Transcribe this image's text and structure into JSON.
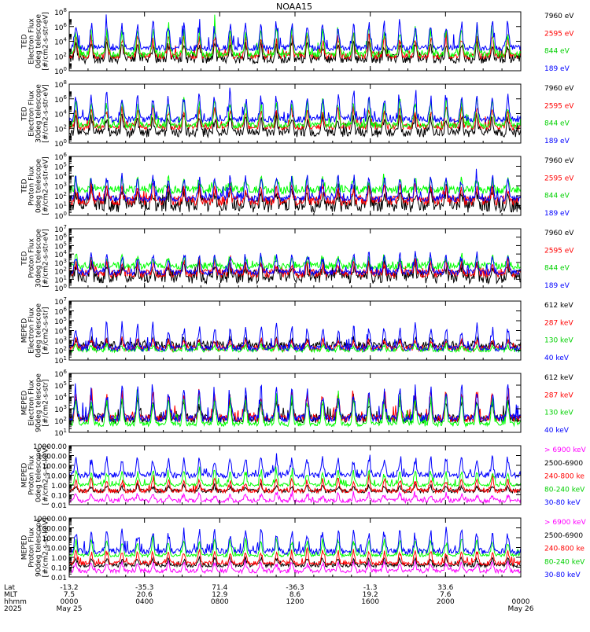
{
  "title": "NOAA15",
  "colors": {
    "black": "#000000",
    "red": "#ff0000",
    "green": "#00ff00",
    "blue": "#0000ff",
    "magenta": "#ff00ff"
  },
  "chart_data": [
    {
      "type": "line",
      "ylabel": [
        "TED",
        "Electron Flux",
        "0deg telescope",
        "[#/cm2-s-str-eV]"
      ],
      "y_scale": "log",
      "ylim_exp": [
        0,
        8
      ],
      "y_ticks": [
        {
          "exp": 0,
          "label": "10",
          "sup": "0"
        },
        {
          "exp": 2,
          "label": "10",
          "sup": "2"
        },
        {
          "exp": 4,
          "label": "10",
          "sup": "4"
        },
        {
          "exp": 6,
          "label": "10",
          "sup": "6"
        },
        {
          "exp": 8,
          "label": "10",
          "sup": "8"
        }
      ],
      "series": [
        {
          "name": "7960 eV",
          "color": "#000000",
          "base": 1.6,
          "amp": 2.4,
          "noise": 0.6
        },
        {
          "name": "2595 eV",
          "color": "#ff0000",
          "base": 2.0,
          "amp": 3.0,
          "noise": 0.4
        },
        {
          "name": "844 eV",
          "color": "#00ff00",
          "base": 2.2,
          "amp": 4.0,
          "noise": 0.4
        },
        {
          "name": "189 eV",
          "color": "#0000ff",
          "base": 3.1,
          "amp": 3.8,
          "noise": 0.4
        }
      ]
    },
    {
      "type": "line",
      "ylabel": [
        "TED",
        "Electron Flux",
        "30deg telescope",
        "[#/cm2-s-str-eV]"
      ],
      "y_scale": "log",
      "ylim_exp": [
        0,
        8
      ],
      "y_ticks": [
        {
          "exp": 0,
          "label": "10",
          "sup": "0"
        },
        {
          "exp": 2,
          "label": "10",
          "sup": "2"
        },
        {
          "exp": 4,
          "label": "10",
          "sup": "4"
        },
        {
          "exp": 6,
          "label": "10",
          "sup": "6"
        },
        {
          "exp": 8,
          "label": "10",
          "sup": "8"
        }
      ],
      "series": [
        {
          "name": "7960 eV",
          "color": "#000000",
          "base": 1.4,
          "amp": 2.4,
          "noise": 0.6
        },
        {
          "name": "2595 eV",
          "color": "#ff0000",
          "base": 2.2,
          "amp": 2.8,
          "noise": 0.4
        },
        {
          "name": "844 eV",
          "color": "#00ff00",
          "base": 2.4,
          "amp": 3.8,
          "noise": 0.4
        },
        {
          "name": "189 eV",
          "color": "#0000ff",
          "base": 3.2,
          "amp": 3.6,
          "noise": 0.4
        }
      ]
    },
    {
      "type": "line",
      "ylabel": [
        "TED",
        "Proton Flux",
        "0deg telescope",
        "[#/cm2-s-str-eV]"
      ],
      "y_scale": "log",
      "ylim_exp": [
        0,
        6
      ],
      "y_ticks": [
        {
          "exp": 0,
          "label": "10",
          "sup": "0"
        },
        {
          "exp": 1,
          "label": "10",
          "sup": "1"
        },
        {
          "exp": 2,
          "label": "10",
          "sup": "2"
        },
        {
          "exp": 3,
          "label": "10",
          "sup": "3"
        },
        {
          "exp": 4,
          "label": "10",
          "sup": "4"
        },
        {
          "exp": 5,
          "label": "10",
          "sup": "5"
        },
        {
          "exp": 6,
          "label": "10",
          "sup": "6"
        }
      ],
      "series": [
        {
          "name": "7960 eV",
          "color": "#000000",
          "base": 1.1,
          "amp": 1.8,
          "noise": 0.8
        },
        {
          "name": "2595 eV",
          "color": "#ff0000",
          "base": 1.5,
          "amp": 1.6,
          "noise": 0.5
        },
        {
          "name": "844 eV",
          "color": "#00ff00",
          "base": 2.6,
          "amp": 1.2,
          "noise": 0.4
        },
        {
          "name": "189 eV",
          "color": "#0000ff",
          "base": 1.7,
          "amp": 2.6,
          "noise": 0.3
        }
      ]
    },
    {
      "type": "line",
      "ylabel": [
        "TED",
        "Proton Flux",
        "30deg telescope",
        "[#/cm2-s-str-eV]"
      ],
      "y_scale": "log",
      "ylim_exp": [
        0,
        7
      ],
      "y_ticks": [
        {
          "exp": 0,
          "label": "10",
          "sup": "0"
        },
        {
          "exp": 1,
          "label": "10",
          "sup": "1"
        },
        {
          "exp": 2,
          "label": "10",
          "sup": "2"
        },
        {
          "exp": 3,
          "label": "10",
          "sup": "3"
        },
        {
          "exp": 4,
          "label": "10",
          "sup": "4"
        },
        {
          "exp": 5,
          "label": "10",
          "sup": "5"
        },
        {
          "exp": 6,
          "label": "10",
          "sup": "6"
        },
        {
          "exp": 7,
          "label": "10",
          "sup": "7"
        }
      ],
      "series": [
        {
          "name": "7960 eV",
          "color": "#000000",
          "base": 1.3,
          "amp": 1.6,
          "noise": 0.8
        },
        {
          "name": "2595 eV",
          "color": "#ff0000",
          "base": 1.7,
          "amp": 1.6,
          "noise": 0.5
        },
        {
          "name": "844 eV",
          "color": "#00ff00",
          "base": 2.6,
          "amp": 1.2,
          "noise": 0.4
        },
        {
          "name": "189 eV",
          "color": "#0000ff",
          "base": 1.8,
          "amp": 2.4,
          "noise": 0.3
        }
      ]
    },
    {
      "type": "line",
      "ylabel": [
        "MEPED",
        "Electron Flux",
        "0deg telescope",
        "[#/cm2-s-str]"
      ],
      "y_scale": "log",
      "ylim_exp": [
        1,
        7
      ],
      "y_ticks": [
        {
          "exp": 1,
          "label": "10",
          "sup": "1"
        },
        {
          "exp": 2,
          "label": "10",
          "sup": "2"
        },
        {
          "exp": 3,
          "label": "10",
          "sup": "3"
        },
        {
          "exp": 4,
          "label": "10",
          "sup": "4"
        },
        {
          "exp": 5,
          "label": "10",
          "sup": "5"
        },
        {
          "exp": 6,
          "label": "10",
          "sup": "6"
        },
        {
          "exp": 7,
          "label": "10",
          "sup": "7"
        }
      ],
      "series": [
        {
          "name": "612 keV",
          "color": "#000000",
          "base": 2.5,
          "amp": 0.6,
          "noise": 0.4
        },
        {
          "name": "287 keV",
          "color": "#ff0000",
          "base": 2.2,
          "amp": 1.0,
          "noise": 0.3
        },
        {
          "name": "130 keV",
          "color": "#00ff00",
          "base": 2.0,
          "amp": 0.6,
          "noise": 0.2
        },
        {
          "name": "40 keV",
          "color": "#0000ff",
          "base": 2.2,
          "amp": 2.5,
          "noise": 0.3
        }
      ]
    },
    {
      "type": "line",
      "ylabel": [
        "MEPED",
        "Electron Flux",
        "90deg telescope",
        "[#/cm2-s-str]"
      ],
      "y_scale": "log",
      "ylim_exp": [
        1,
        6
      ],
      "y_ticks": [
        {
          "exp": 1,
          "label": "10",
          "sup": "1"
        },
        {
          "exp": 2,
          "label": "10",
          "sup": "2"
        },
        {
          "exp": 3,
          "label": "10",
          "sup": "3"
        },
        {
          "exp": 4,
          "label": "10",
          "sup": "4"
        },
        {
          "exp": 5,
          "label": "10",
          "sup": "5"
        },
        {
          "exp": 6,
          "label": "10",
          "sup": "6"
        }
      ],
      "series": [
        {
          "name": "612 keV",
          "color": "#000000",
          "base": 2.2,
          "amp": 1.8,
          "noise": 0.4
        },
        {
          "name": "287 keV",
          "color": "#ff0000",
          "base": 2.2,
          "amp": 2.4,
          "noise": 0.3
        },
        {
          "name": "130 keV",
          "color": "#00ff00",
          "base": 1.7,
          "amp": 2.6,
          "noise": 0.2
        },
        {
          "name": "40 keV",
          "color": "#0000ff",
          "base": 2.2,
          "amp": 2.8,
          "noise": 0.3
        }
      ]
    },
    {
      "type": "line",
      "ylabel": [
        "MEPED",
        "Proton Flux",
        "0deg telescope",
        "[#/cm2-s-sr-keV]"
      ],
      "y_scale": "log",
      "ylim_exp": [
        -2,
        4
      ],
      "y_ticks": [
        {
          "exp": -2,
          "label": "0.01"
        },
        {
          "exp": -1,
          "label": "0.10"
        },
        {
          "exp": 0,
          "label": "1.00"
        },
        {
          "exp": 1,
          "label": "10.00"
        },
        {
          "exp": 2,
          "label": "100.00"
        },
        {
          "exp": 3,
          "label": "1000.00"
        },
        {
          "exp": 4,
          "label": "10000.00"
        }
      ],
      "series": [
        {
          "name": "> 6900 keV",
          "color": "#ff00ff",
          "base": -1.6,
          "amp": 0.8,
          "noise": 0.2
        },
        {
          "name": "2500-6900",
          "color": "#000000",
          "base": -0.6,
          "amp": 0.6,
          "noise": 0.2
        },
        {
          "name": "240-800 ke",
          "color": "#ff0000",
          "base": -0.6,
          "amp": 1.4,
          "noise": 0.2
        },
        {
          "name": "80-240 keV",
          "color": "#00ff00",
          "base": 0.0,
          "amp": 1.6,
          "noise": 0.15
        },
        {
          "name": "30-80 keV",
          "color": "#0000ff",
          "base": 1.0,
          "amp": 2.0,
          "noise": 0.3
        }
      ]
    },
    {
      "type": "line",
      "ylabel": [
        "MEPED",
        "Proton Flux",
        "90deg telescope",
        "[#/cm2-s-sr-keV]"
      ],
      "y_scale": "log",
      "ylim_exp": [
        -2,
        4
      ],
      "y_ticks": [
        {
          "exp": -2,
          "label": "0.01"
        },
        {
          "exp": -1,
          "label": "0.10"
        },
        {
          "exp": 0,
          "label": "1.00"
        },
        {
          "exp": 1,
          "label": "10.00"
        },
        {
          "exp": 2,
          "label": "100.00"
        },
        {
          "exp": 3,
          "label": "1000.00"
        },
        {
          "exp": 4,
          "label": "10000.00"
        }
      ],
      "series": [
        {
          "name": "> 6900 keV",
          "color": "#ff00ff",
          "base": -1.4,
          "amp": 1.0,
          "noise": 0.2
        },
        {
          "name": "2500-6900",
          "color": "#000000",
          "base": -0.8,
          "amp": 0.8,
          "noise": 0.2
        },
        {
          "name": "240-800 ke",
          "color": "#ff0000",
          "base": -0.6,
          "amp": 1.4,
          "noise": 0.2
        },
        {
          "name": "80-240 keV",
          "color": "#00ff00",
          "base": 0.2,
          "amp": 1.8,
          "noise": 0.15
        },
        {
          "name": "30-80 keV",
          "color": "#0000ff",
          "base": 0.6,
          "amp": 2.4,
          "noise": 0.3
        }
      ]
    }
  ],
  "x_axis": {
    "row_labels": [
      "Lat",
      "MLT",
      "hhmm",
      "2025"
    ],
    "ticks": [
      {
        "hour": 0,
        "lat": "-13.2",
        "mlt": "7.5",
        "hhmm": "0000",
        "date": "May 25"
      },
      {
        "hour": 4,
        "lat": "-35.3",
        "mlt": "20.6",
        "hhmm": "0400",
        "date": ""
      },
      {
        "hour": 8,
        "lat": "71.4",
        "mlt": "12.9",
        "hhmm": "0800",
        "date": ""
      },
      {
        "hour": 12,
        "lat": "-36.3",
        "mlt": "8.6",
        "hhmm": "1200",
        "date": ""
      },
      {
        "hour": 16,
        "lat": "-1.3",
        "mlt": "19.2",
        "hhmm": "1600",
        "date": ""
      },
      {
        "hour": 20,
        "lat": "33.6",
        "mlt": "7.6",
        "hhmm": "2000",
        "date": ""
      },
      {
        "hour": 24,
        "lat": "",
        "mlt": "",
        "hhmm": "0000",
        "date": "May 26"
      }
    ]
  }
}
